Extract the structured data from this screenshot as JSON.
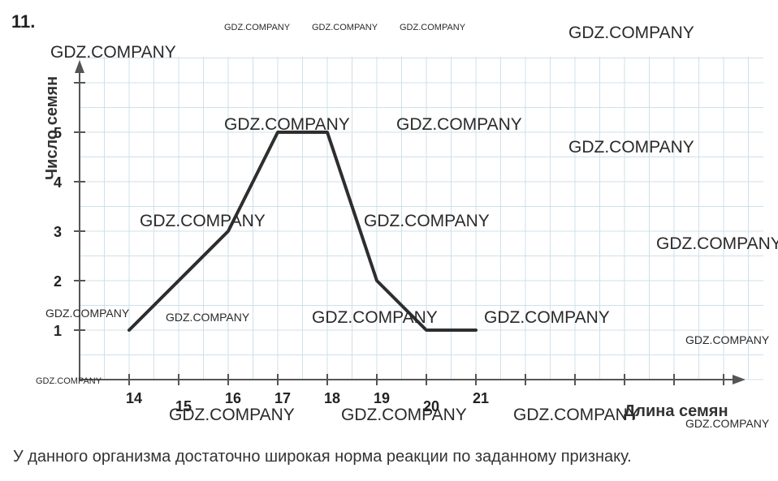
{
  "problem_number": "11.",
  "caption": "У данного организма достаточно широкая норма реакции по заданному признаку.",
  "watermark_text": "GDZ.COMPANY",
  "colors": {
    "grid": "#cfe0ea",
    "axis": "#555555",
    "line": "#2e2e2e"
  },
  "chart_data": {
    "type": "line",
    "title": "",
    "xlabel": "Длина семян",
    "ylabel": "Число семян",
    "x_ticks": [
      14,
      15,
      16,
      17,
      18,
      19,
      20,
      21
    ],
    "y_ticks": [
      1,
      2,
      3,
      4,
      5
    ],
    "xlim": [
      13,
      26
    ],
    "ylim": [
      0,
      6
    ],
    "grid": true,
    "series": [
      {
        "x": [
          14,
          16,
          17,
          18,
          19,
          20,
          21
        ],
        "y": [
          1,
          3,
          5,
          5,
          2,
          1,
          1
        ]
      }
    ]
  }
}
